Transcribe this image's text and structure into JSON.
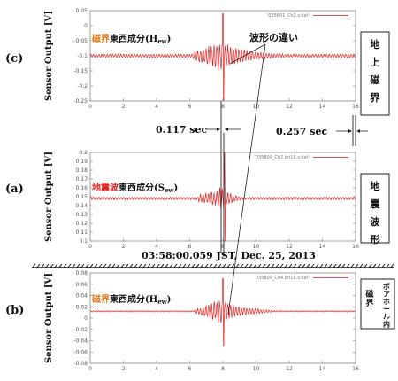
{
  "chart_data": [
    {
      "id": "c",
      "type": "line",
      "panel_label": "(c)",
      "title_accent": "磁界",
      "title_main": "東西成分(H",
      "title_sub": "ew",
      "title_close": ")",
      "accent_color": "#e07b1e",
      "legend": "'035801_Ch2.v.dat'",
      "ylabel": "Sensor Output [V]",
      "ylim": [
        -0.25,
        0.05
      ],
      "yticks": [
        "0.05",
        "0",
        "-0.05",
        "-0.1",
        "-0.15",
        "-0.2",
        "-0.25"
      ],
      "xlim": [
        0,
        16
      ],
      "xticks": [
        "0",
        "2",
        "4",
        "6",
        "8",
        "10",
        "12",
        "14",
        "16"
      ],
      "baseline": -0.1,
      "onset": 6.2,
      "peak_time": 8.0,
      "peak_high": 0.04,
      "peak_low": -0.25,
      "decay_end": 12.0,
      "envelope_pre": 0.015,
      "envelope_post": 0.045,
      "color": "#e02020",
      "sidebox": [
        "地",
        "上",
        "磁",
        "界"
      ]
    },
    {
      "id": "a",
      "type": "line",
      "panel_label": "(a)",
      "title_accent": "地震波",
      "title_main": "東西成分(S",
      "title_sub": "ew",
      "title_close": ")",
      "accent_color": "#e02020",
      "legend": "'035800_Ch2.int16.v.dat'",
      "ylabel": "Sensor Output [V]",
      "ylim": [
        0.1,
        0.2
      ],
      "yticks": [
        "0.2",
        "0.19",
        "0.18",
        "0.17",
        "0.16",
        "0.15",
        "0.14",
        "0.13",
        "0.12",
        "0.11",
        "0.1"
      ],
      "xlim": [
        0,
        16
      ],
      "xticks": [
        "0",
        "2",
        "4",
        "6",
        "8",
        "10",
        "12",
        "14",
        "16"
      ],
      "baseline": 0.148,
      "onset": 6.5,
      "peak_time": 8.1,
      "peak_high": 0.2,
      "peak_low": 0.1,
      "decay_end": 9.5,
      "envelope_pre": 0.004,
      "envelope_post": 0.01,
      "color": "#e02020",
      "sidebox": [
        "地",
        "震",
        "波",
        "形"
      ]
    },
    {
      "id": "b",
      "type": "line",
      "panel_label": "(b)",
      "title_accent": "磁界",
      "title_main": "東西成分(H",
      "title_sub": "ew",
      "title_close": ")",
      "accent_color": "#e07b1e",
      "legend": "'035800_Ch4.int16.v.dat'",
      "ylabel": "Sensor Output [V]",
      "ylim": [
        -0.08,
        0.08
      ],
      "yticks": [
        "0.08",
        "0.06",
        "0.04",
        "0.02",
        "0",
        "-0.02",
        "-0.04",
        "-0.06",
        "-0.08"
      ],
      "xlim": [
        0,
        16
      ],
      "xticks": [
        "0",
        "2",
        "4",
        "6",
        "8",
        "10",
        "12",
        "14",
        "16"
      ],
      "baseline": 0.012,
      "onset": 6.3,
      "peak_time": 8.0,
      "peak_high": 0.07,
      "peak_low": -0.05,
      "decay_end": 11.0,
      "envelope_pre": 0.003,
      "envelope_post": 0.02,
      "color": "#e02020",
      "sidebox": [
        "ボアホール内",
        "磁界"
      ]
    }
  ],
  "annotations": {
    "wave_difference": "波形の違い",
    "delay_1": "0.117 sec",
    "delay_2": "0.257 sec",
    "timestamp": "03:58:00.059 JST,  Dec. 25, 2013"
  }
}
